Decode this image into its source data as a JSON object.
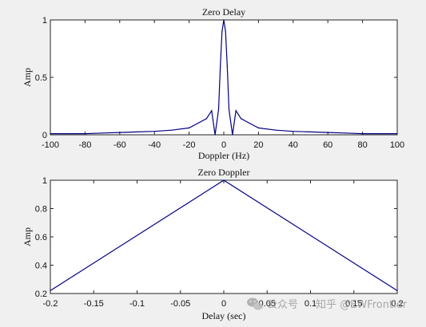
{
  "chart_data": [
    {
      "type": "line",
      "title": "Zero Delay",
      "xlabel": "Doppler (Hz)",
      "ylabel": "Amp",
      "xlim": [
        -100,
        100
      ],
      "ylim": [
        0,
        1
      ],
      "xticks": [
        "-100",
        "-80",
        "-60",
        "-40",
        "-20",
        "0",
        "20",
        "40",
        "60",
        "80",
        "100"
      ],
      "yticks": [
        "0",
        "0.5",
        "1"
      ],
      "grid": false,
      "line_color": "#000080",
      "series": [
        {
          "x": [
            -100,
            -90,
            -80,
            -70,
            -60,
            -50,
            -40,
            -30,
            -20,
            -15,
            -10,
            -7,
            -5,
            -3,
            -2,
            -1,
            0,
            1,
            2,
            3,
            5,
            7,
            10,
            15,
            20,
            30,
            40,
            50,
            60,
            70,
            80,
            90,
            100
          ],
          "values": [
            0.01,
            0.01,
            0.01,
            0.015,
            0.02,
            0.025,
            0.03,
            0.04,
            0.06,
            0.1,
            0.14,
            0.21,
            0.0,
            0.22,
            0.6,
            0.9,
            1.0,
            0.9,
            0.6,
            0.22,
            0.0,
            0.21,
            0.14,
            0.1,
            0.06,
            0.04,
            0.03,
            0.025,
            0.02,
            0.015,
            0.01,
            0.01,
            0.01
          ]
        }
      ]
    },
    {
      "type": "line",
      "title": "Zero Doppler",
      "xlabel": "Delay (sec)",
      "ylabel": "Amp",
      "xlim": [
        -0.2,
        0.2
      ],
      "ylim": [
        0.2,
        1
      ],
      "xticks": [
        "-0.2",
        "-0.15",
        "-0.1",
        "-0.05",
        "0",
        "0.05",
        "0.1",
        "0.15",
        "0.2"
      ],
      "yticks": [
        "0.2",
        "0.4",
        "0.6",
        "0.8",
        "1"
      ],
      "grid": false,
      "line_color": "#000080",
      "series": [
        {
          "x": [
            -0.2,
            0,
            0.2
          ],
          "values": [
            0.22,
            1.0,
            0.22
          ]
        }
      ]
    }
  ],
  "watermark": {
    "text": "知乎 @EWFrontier",
    "icon": "wechat-icon",
    "subtext": "公众号"
  }
}
